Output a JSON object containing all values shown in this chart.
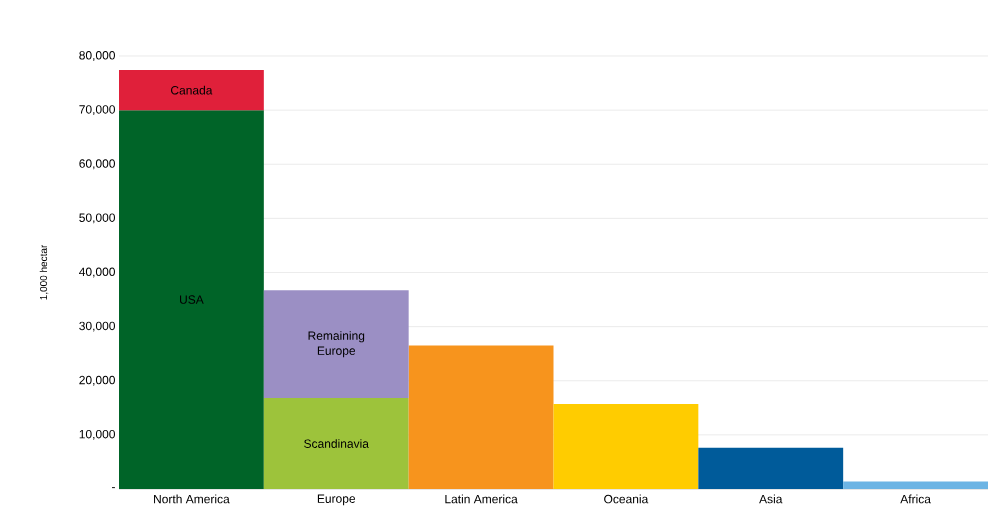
{
  "chart_data": {
    "type": "bar",
    "stacked": true,
    "ylabel": "1,000 hectar",
    "categories": [
      "North America",
      "Europe",
      "Latin America",
      "Oceania",
      "Asia",
      "Africa"
    ],
    "series": [
      {
        "name": "USA",
        "color": "#006428",
        "values": [
          70000,
          null,
          null,
          null,
          null,
          null
        ]
      },
      {
        "name": "Scandinavia",
        "color": "#9dc33b",
        "values": [
          null,
          16800,
          null,
          null,
          null,
          null
        ]
      },
      {
        "colors": [
          null,
          null,
          "#f7941d",
          "#ffcc00",
          "#005b9a",
          "#6cb4e4"
        ],
        "values": [
          null,
          null,
          26500,
          15700,
          7600,
          1400
        ]
      },
      {
        "name": "Canada",
        "color": "#e0203a",
        "values": [
          7400,
          null,
          null,
          null,
          null,
          null
        ]
      },
      {
        "name": "Remaining Europe",
        "color": "#9b8fc4",
        "values": [
          null,
          19900,
          null,
          null,
          null,
          null
        ]
      }
    ],
    "ylim": [
      0,
      80000
    ],
    "yticks": [
      {
        "value": 0,
        "label": "-"
      },
      {
        "value": 10000,
        "label": "10,000"
      },
      {
        "value": 20000,
        "label": "20,000"
      },
      {
        "value": 30000,
        "label": "30,000"
      },
      {
        "value": 40000,
        "label": "40,000"
      },
      {
        "value": 50000,
        "label": "50,000"
      },
      {
        "value": 60000,
        "label": "60,000"
      },
      {
        "value": 70000,
        "label": "70,000"
      },
      {
        "value": 80000,
        "label": "80,000"
      }
    ],
    "grid": "y"
  }
}
